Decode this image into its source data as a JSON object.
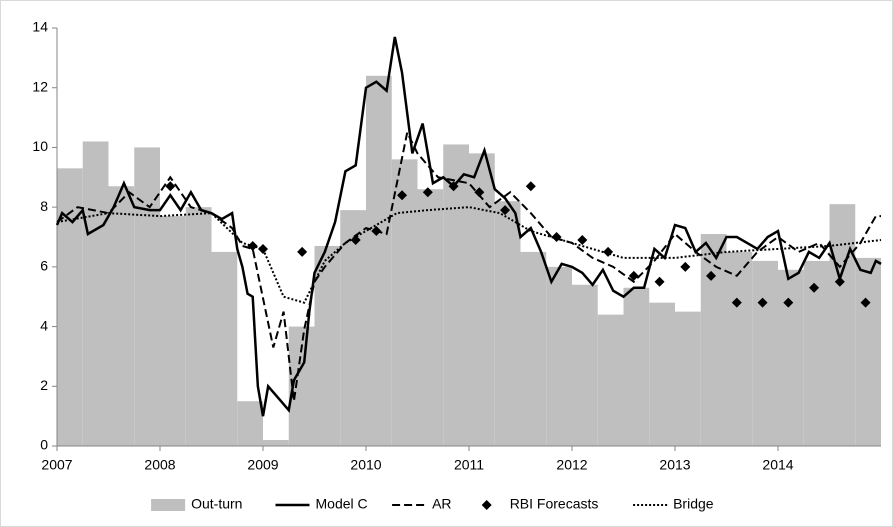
{
  "chart_data": {
    "type": "line",
    "xlim": [
      2007,
      2015
    ],
    "xticks": [
      2007,
      2008,
      2009,
      2010,
      2011,
      2012,
      2013,
      2014
    ],
    "ylim": [
      0,
      14
    ],
    "yticks": [
      0,
      2,
      4,
      6,
      8,
      10,
      12,
      14
    ],
    "legend": "bottom",
    "series": [
      {
        "name": "Out-turn",
        "kind": "step-area",
        "color": "#bfbfbf",
        "x": [
          2007,
          2007.25,
          2007.5,
          2007.75,
          2008,
          2008.25,
          2008.5,
          2008.75,
          2009,
          2009.25,
          2009.5,
          2009.75,
          2010,
          2010.25,
          2010.5,
          2010.75,
          2011,
          2011.25,
          2011.5,
          2011.75,
          2012,
          2012.25,
          2012.5,
          2012.75,
          2013,
          2013.25,
          2013.5,
          2013.75,
          2014,
          2014.25,
          2014.5,
          2014.75
        ],
        "values": [
          9.3,
          10.2,
          8.7,
          10.0,
          7.7,
          8.0,
          6.5,
          1.5,
          0.2,
          4.0,
          6.7,
          7.9,
          12.4,
          9.6,
          8.6,
          10.1,
          9.8,
          8.2,
          6.5,
          6.0,
          5.4,
          4.4,
          5.3,
          4.8,
          4.5,
          7.1,
          6.5,
          6.2,
          5.9,
          6.2,
          8.1,
          6.3
        ]
      },
      {
        "name": "Model C",
        "kind": "solid",
        "color": "#000000",
        "x": [
          2007.0,
          2007.05,
          2007.15,
          2007.25,
          2007.3,
          2007.45,
          2007.55,
          2007.65,
          2007.75,
          2007.9,
          2008.0,
          2008.1,
          2008.2,
          2008.3,
          2008.4,
          2008.5,
          2008.6,
          2008.7,
          2008.75,
          2008.8,
          2008.85,
          2008.9,
          2008.95,
          2009.0,
          2009.05,
          2009.15,
          2009.25,
          2009.3,
          2009.4,
          2009.45,
          2009.5,
          2009.6,
          2009.7,
          2009.8,
          2009.9,
          2010.0,
          2010.1,
          2010.2,
          2010.28,
          2010.35,
          2010.45,
          2010.55,
          2010.65,
          2010.75,
          2010.85,
          2010.95,
          2011.05,
          2011.15,
          2011.25,
          2011.35,
          2011.45,
          2011.5,
          2011.6,
          2011.7,
          2011.8,
          2011.9,
          2012.0,
          2012.1,
          2012.2,
          2012.3,
          2012.4,
          2012.5,
          2012.6,
          2012.7,
          2012.8,
          2012.9,
          2013.0,
          2013.1,
          2013.2,
          2013.3,
          2013.4,
          2013.5,
          2013.6,
          2013.7,
          2013.8,
          2013.9,
          2014.0,
          2014.1,
          2014.2,
          2014.3,
          2014.4,
          2014.5,
          2014.6,
          2014.7,
          2014.8,
          2014.9,
          2014.95,
          2015.0
        ],
        "values": [
          7.4,
          7.8,
          7.5,
          7.9,
          7.1,
          7.4,
          8.0,
          8.8,
          8.0,
          7.9,
          7.9,
          8.4,
          7.9,
          8.5,
          7.9,
          7.8,
          7.6,
          7.8,
          6.6,
          6.0,
          5.1,
          5.0,
          2.0,
          1.0,
          2.0,
          1.6,
          1.2,
          2.2,
          2.8,
          4.5,
          5.8,
          6.5,
          7.5,
          9.2,
          9.4,
          12.0,
          12.2,
          11.9,
          13.7,
          12.5,
          9.8,
          10.8,
          8.8,
          9.0,
          8.7,
          9.1,
          9.0,
          9.9,
          8.6,
          8.3,
          7.8,
          7.0,
          7.3,
          6.5,
          5.5,
          6.1,
          6.0,
          5.8,
          5.4,
          5.9,
          5.2,
          5.0,
          5.3,
          5.3,
          6.6,
          6.3,
          7.4,
          7.3,
          6.5,
          6.8,
          6.3,
          7.0,
          7.0,
          6.8,
          6.6,
          7.0,
          7.2,
          5.6,
          5.8,
          6.5,
          6.3,
          6.8,
          5.6,
          6.6,
          5.9,
          5.8,
          6.2,
          6.1
        ]
      },
      {
        "name": "AR",
        "kind": "dashed",
        "color": "#000000",
        "x": [
          2007.0,
          2007.2,
          2007.5,
          2007.7,
          2007.9,
          2008.1,
          2008.3,
          2008.5,
          2008.7,
          2008.8,
          2008.9,
          2009.1,
          2009.2,
          2009.3,
          2009.4,
          2009.5,
          2009.6,
          2009.8,
          2010.0,
          2010.2,
          2010.4,
          2010.5,
          2010.7,
          2011.0,
          2011.2,
          2011.4,
          2011.6,
          2011.8,
          2012.0,
          2012.2,
          2012.4,
          2012.6,
          2012.8,
          2013.0,
          2013.2,
          2013.4,
          2013.6,
          2013.8,
          2014.0,
          2014.2,
          2014.4,
          2014.6,
          2014.8,
          2014.95,
          2015.0
        ],
        "values": [
          7.5,
          8.0,
          7.8,
          8.5,
          8.0,
          9.0,
          8.0,
          7.8,
          7.3,
          6.7,
          6.6,
          3.3,
          4.5,
          1.5,
          3.9,
          5.5,
          6.0,
          6.8,
          7.3,
          7.1,
          10.5,
          9.8,
          9.0,
          8.8,
          8.0,
          8.5,
          7.8,
          7.0,
          6.8,
          6.3,
          6.0,
          5.5,
          6.2,
          7.1,
          6.5,
          6.0,
          5.7,
          6.5,
          7.0,
          6.5,
          6.8,
          6.0,
          6.8,
          7.7,
          7.7
        ]
      },
      {
        "name": "RBI Forecasts",
        "kind": "diamond",
        "color": "#000000",
        "x": [
          2008.1,
          2008.9,
          2009.0,
          2009.38,
          2009.9,
          2010.1,
          2010.35,
          2010.6,
          2010.85,
          2011.1,
          2011.35,
          2011.6,
          2011.85,
          2012.1,
          2012.35,
          2012.6,
          2012.85,
          2013.1,
          2013.35,
          2013.6,
          2013.85,
          2014.1,
          2014.35,
          2014.6,
          2014.85
        ],
        "values": [
          8.7,
          6.7,
          6.6,
          6.5,
          6.9,
          7.2,
          8.4,
          8.5,
          8.7,
          8.5,
          7.9,
          8.7,
          7.0,
          6.9,
          6.5,
          5.7,
          5.5,
          6.0,
          5.7,
          4.8,
          4.8,
          4.8,
          5.3,
          5.5,
          4.8
        ]
      },
      {
        "name": "Bridge",
        "kind": "dotted",
        "color": "#000000",
        "x": [
          2007.0,
          2007.5,
          2008.0,
          2008.5,
          2008.8,
          2009.0,
          2009.2,
          2009.4,
          2009.6,
          2009.8,
          2010.0,
          2010.3,
          2010.6,
          2011.0,
          2011.3,
          2011.6,
          2012.0,
          2012.5,
          2013.0,
          2013.5,
          2014.0,
          2014.5,
          2015.0
        ],
        "values": [
          7.5,
          7.8,
          7.7,
          7.8,
          6.8,
          6.6,
          5.0,
          4.8,
          6.2,
          6.8,
          7.2,
          7.8,
          7.9,
          8.0,
          7.8,
          7.2,
          6.8,
          6.3,
          6.3,
          6.5,
          6.6,
          6.7,
          6.9
        ]
      }
    ]
  }
}
